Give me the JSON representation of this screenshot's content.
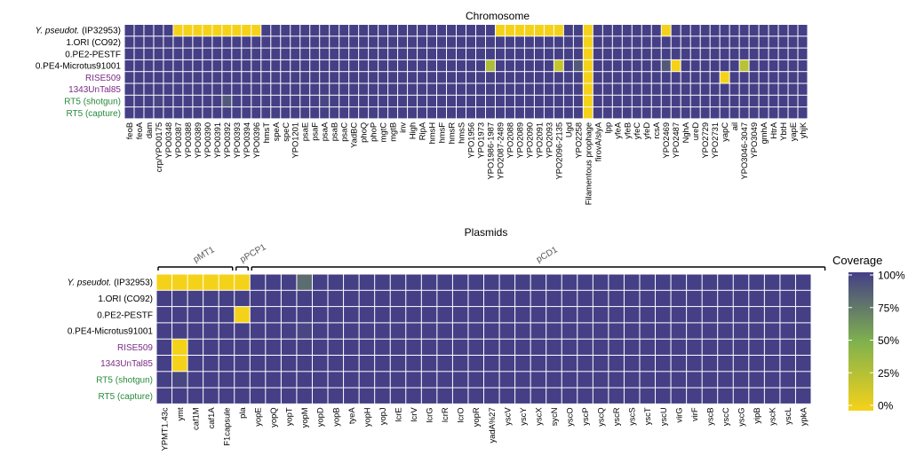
{
  "colors": {
    "high": "#453f86",
    "mid": "#7fb14e",
    "low": "#f5d21a",
    "grid": "#ffffff",
    "label_default": "#000000",
    "label_purple": "#7b2a86",
    "label_green": "#2a8a3d"
  },
  "legend": {
    "title": "Coverage",
    "ticks": [
      "100%",
      "75%",
      "50%",
      "25%",
      "0%"
    ]
  },
  "chart_data": [
    {
      "type": "heatmap",
      "title": "Chromosome",
      "rows": [
        {
          "label": "Y. pseudot. (IP32953)",
          "italic_prefix": "Y. pseudot.",
          "rest": " (IP32953)",
          "color": "label_default"
        },
        {
          "label": "1.ORI (CO92)",
          "color": "label_default"
        },
        {
          "label": "0.PE2-PESTF",
          "color": "label_default"
        },
        {
          "label": "0.PE4-Microtus91001",
          "color": "label_default"
        },
        {
          "label": "RISE509",
          "color": "label_purple"
        },
        {
          "label": "1343UnTal85",
          "color": "label_purple"
        },
        {
          "label": "RT5 (shotgun)",
          "color": "label_green"
        },
        {
          "label": "RT5 (capture)",
          "color": "label_green"
        }
      ],
      "columns": [
        "feoB",
        "feoA",
        "dam",
        "crp/YPO0175",
        "YPO0348",
        "YPO0387",
        "YPO0388",
        "YPO0389",
        "YPO0390",
        "YPO0391",
        "YPO0392",
        "YPO0393",
        "YPO0394",
        "YPO0396",
        "hmsT",
        "speA",
        "speC",
        "YPO1201",
        "psaE",
        "psaF",
        "psaA",
        "psaB",
        "psaC",
        "YadBC",
        "phoQ",
        "phoP",
        "mgtC",
        "mgtB",
        "inv",
        "High",
        "RipA",
        "hmsH",
        "hmsF",
        "hmsR",
        "hmsS",
        "YPO1956",
        "YPO1973",
        "YPO1986-1987",
        "YPO2087-2489",
        "YPO2088",
        "YPO2089",
        "YPO2090",
        "YPO2091",
        "YPO2093",
        "YPO2096-2135",
        "Ugd",
        "YPO2258",
        "Filamentous prophage",
        "firovA/slyA",
        "lpp",
        "yfeA",
        "yfeB",
        "yfeC",
        "yfeD",
        "rcsA",
        "YPO2469",
        "YPO2487",
        "NghA",
        "ureD",
        "YPO2729",
        "YPO2731",
        "yapC",
        "ail",
        "YPO3046-3047",
        "YPO3049",
        "gmhA",
        "HtrA",
        "YbtH",
        "yapE",
        "yhjK"
      ],
      "values": [
        [
          100,
          100,
          100,
          100,
          100,
          0,
          0,
          0,
          0,
          0,
          0,
          0,
          0,
          0,
          100,
          100,
          100,
          100,
          100,
          100,
          100,
          100,
          100,
          100,
          100,
          100,
          100,
          100,
          100,
          100,
          100,
          100,
          100,
          100,
          100,
          100,
          100,
          100,
          0,
          0,
          0,
          0,
          0,
          0,
          0,
          100,
          100,
          0,
          100,
          100,
          100,
          100,
          100,
          100,
          100,
          0,
          100,
          100,
          100,
          100,
          100,
          100,
          100,
          100,
          100,
          100,
          100,
          100,
          100,
          100
        ],
        [
          100,
          100,
          100,
          100,
          100,
          100,
          100,
          100,
          100,
          100,
          100,
          100,
          100,
          100,
          100,
          100,
          100,
          100,
          100,
          100,
          100,
          100,
          100,
          100,
          100,
          100,
          100,
          100,
          100,
          100,
          100,
          100,
          100,
          100,
          100,
          100,
          100,
          100,
          100,
          100,
          100,
          100,
          100,
          100,
          100,
          100,
          100,
          0,
          100,
          100,
          100,
          100,
          100,
          100,
          100,
          100,
          100,
          100,
          100,
          100,
          100,
          100,
          100,
          100,
          100,
          100,
          100,
          100,
          100,
          100
        ],
        [
          100,
          100,
          100,
          100,
          100,
          100,
          100,
          100,
          100,
          100,
          100,
          100,
          100,
          100,
          100,
          100,
          100,
          100,
          100,
          100,
          100,
          100,
          100,
          100,
          100,
          100,
          100,
          100,
          100,
          100,
          100,
          100,
          100,
          100,
          100,
          100,
          100,
          100,
          100,
          100,
          100,
          100,
          100,
          100,
          100,
          100,
          100,
          0,
          100,
          100,
          100,
          100,
          100,
          100,
          100,
          100,
          100,
          100,
          100,
          100,
          100,
          100,
          100,
          100,
          100,
          100,
          100,
          100,
          100,
          100
        ],
        [
          100,
          100,
          100,
          100,
          100,
          100,
          100,
          100,
          100,
          100,
          100,
          100,
          100,
          100,
          100,
          100,
          100,
          100,
          100,
          100,
          100,
          100,
          100,
          100,
          100,
          100,
          100,
          100,
          100,
          100,
          100,
          100,
          100,
          100,
          100,
          100,
          100,
          30,
          100,
          100,
          100,
          100,
          100,
          100,
          20,
          100,
          88,
          0,
          100,
          100,
          100,
          100,
          100,
          100,
          100,
          88,
          0,
          100,
          100,
          100,
          100,
          100,
          100,
          25,
          100,
          100,
          100,
          100,
          100,
          100
        ],
        [
          100,
          100,
          100,
          100,
          100,
          100,
          100,
          100,
          100,
          100,
          100,
          100,
          100,
          100,
          100,
          100,
          100,
          100,
          100,
          100,
          100,
          100,
          100,
          100,
          100,
          100,
          100,
          100,
          100,
          100,
          100,
          100,
          100,
          100,
          100,
          100,
          100,
          100,
          100,
          100,
          100,
          100,
          100,
          100,
          100,
          100,
          100,
          0,
          100,
          100,
          100,
          100,
          100,
          100,
          100,
          100,
          100,
          100,
          100,
          100,
          100,
          0,
          100,
          100,
          100,
          100,
          100,
          100,
          100,
          100
        ],
        [
          100,
          100,
          100,
          100,
          100,
          100,
          100,
          100,
          100,
          100,
          100,
          100,
          100,
          100,
          100,
          100,
          100,
          100,
          100,
          100,
          100,
          100,
          100,
          100,
          100,
          100,
          100,
          100,
          100,
          100,
          100,
          100,
          100,
          100,
          100,
          100,
          100,
          100,
          100,
          100,
          100,
          100,
          100,
          100,
          100,
          100,
          100,
          0,
          100,
          100,
          100,
          100,
          100,
          100,
          100,
          100,
          100,
          100,
          100,
          100,
          100,
          100,
          100,
          100,
          100,
          100,
          100,
          100,
          100,
          100
        ],
        [
          100,
          100,
          100,
          97,
          100,
          100,
          100,
          100,
          100,
          100,
          88,
          100,
          100,
          100,
          100,
          100,
          100,
          100,
          100,
          100,
          97,
          100,
          100,
          100,
          100,
          100,
          100,
          100,
          100,
          100,
          100,
          100,
          100,
          100,
          100,
          100,
          100,
          100,
          100,
          100,
          100,
          100,
          100,
          100,
          100,
          100,
          100,
          0,
          100,
          100,
          100,
          100,
          100,
          100,
          100,
          100,
          100,
          100,
          100,
          100,
          100,
          100,
          100,
          100,
          100,
          100,
          100,
          100,
          100,
          100
        ],
        [
          100,
          100,
          100,
          100,
          100,
          100,
          100,
          100,
          100,
          100,
          100,
          100,
          100,
          100,
          100,
          100,
          100,
          100,
          100,
          100,
          100,
          100,
          100,
          100,
          100,
          100,
          100,
          100,
          100,
          100,
          100,
          100,
          100,
          100,
          100,
          100,
          100,
          100,
          100,
          100,
          100,
          100,
          100,
          100,
          100,
          100,
          100,
          0,
          100,
          100,
          100,
          100,
          100,
          100,
          100,
          100,
          100,
          100,
          100,
          100,
          100,
          100,
          100,
          100,
          100,
          100,
          100,
          100,
          100,
          100
        ]
      ]
    },
    {
      "type": "heatmap",
      "title": "Plasmids",
      "groups": [
        {
          "label": "pMT1",
          "start": 0,
          "end": 4
        },
        {
          "label": "pPCP1",
          "start": 5,
          "end": 5
        },
        {
          "label": "pCD1",
          "start": 6,
          "end": 42
        }
      ],
      "rows": [
        {
          "label": "Y. pseudot. (IP32953)",
          "italic_prefix": "Y. pseudot.",
          "rest": " (IP32953)",
          "color": "label_default"
        },
        {
          "label": "1.ORI (CO92)",
          "color": "label_default"
        },
        {
          "label": "0.PE2-PESTF",
          "color": "label_default"
        },
        {
          "label": "0.PE4-Microtus91001",
          "color": "label_default"
        },
        {
          "label": "RISE509",
          "color": "label_purple"
        },
        {
          "label": "1343UnTal85",
          "color": "label_purple"
        },
        {
          "label": "RT5 (shotgun)",
          "color": "label_green"
        },
        {
          "label": "RT5 (capture)",
          "color": "label_green"
        }
      ],
      "columns": [
        "YPMT1.43c",
        "ymt",
        "caf1M",
        "caf1A",
        "F1capsule",
        "pla",
        "yopE",
        "yopQ",
        "yopT",
        "yopM",
        "yopD",
        "yopB",
        "tyeA",
        "yopH",
        "yopJ",
        "lcrE",
        "lcrV",
        "lcrG",
        "lcrR",
        "lcrO",
        "yopR",
        "yadA%27",
        "yscV",
        "yscY",
        "yscX",
        "sycN",
        "yscO",
        "yscP",
        "yscQ",
        "yscR",
        "yscS",
        "yscT",
        "yscU",
        "virG",
        "virF",
        "yscB",
        "yscC",
        "yscG",
        "yipB",
        "yscK",
        "yscL",
        "ypkA"
      ],
      "values": [
        [
          0,
          0,
          0,
          0,
          0,
          0,
          100,
          100,
          100,
          80,
          100,
          100,
          100,
          100,
          100,
          100,
          100,
          100,
          100,
          100,
          100,
          100,
          100,
          100,
          100,
          100,
          100,
          100,
          100,
          100,
          100,
          100,
          100,
          100,
          100,
          100,
          100,
          100,
          100,
          100,
          100,
          100
        ],
        [
          100,
          100,
          100,
          100,
          100,
          100,
          100,
          100,
          100,
          100,
          100,
          100,
          100,
          100,
          100,
          100,
          100,
          100,
          100,
          100,
          100,
          100,
          100,
          100,
          100,
          100,
          100,
          100,
          100,
          100,
          100,
          100,
          100,
          100,
          100,
          100,
          100,
          100,
          100,
          100,
          100,
          100
        ],
        [
          100,
          100,
          100,
          100,
          100,
          0,
          100,
          100,
          100,
          100,
          100,
          100,
          100,
          100,
          100,
          100,
          100,
          100,
          100,
          100,
          100,
          100,
          100,
          100,
          100,
          100,
          100,
          100,
          100,
          100,
          100,
          100,
          100,
          100,
          100,
          100,
          100,
          100,
          100,
          100,
          100,
          100
        ],
        [
          100,
          100,
          100,
          100,
          100,
          100,
          100,
          100,
          100,
          97,
          100,
          100,
          100,
          100,
          100,
          100,
          100,
          100,
          100,
          100,
          100,
          100,
          100,
          100,
          100,
          100,
          100,
          100,
          100,
          100,
          100,
          100,
          100,
          100,
          100,
          100,
          100,
          100,
          100,
          100,
          100,
          100
        ],
        [
          100,
          0,
          100,
          100,
          100,
          100,
          100,
          100,
          100,
          100,
          100,
          100,
          100,
          100,
          100,
          100,
          100,
          100,
          100,
          100,
          100,
          100,
          100,
          100,
          100,
          100,
          100,
          100,
          100,
          100,
          100,
          100,
          100,
          100,
          100,
          100,
          100,
          100,
          100,
          100,
          100,
          100
        ],
        [
          100,
          0,
          100,
          100,
          100,
          100,
          100,
          100,
          100,
          100,
          100,
          100,
          100,
          100,
          100,
          100,
          100,
          100,
          100,
          100,
          100,
          100,
          100,
          100,
          100,
          100,
          100,
          100,
          100,
          100,
          100,
          100,
          100,
          100,
          100,
          100,
          100,
          100,
          100,
          100,
          100,
          100
        ],
        [
          100,
          97,
          100,
          100,
          100,
          100,
          100,
          100,
          100,
          100,
          100,
          100,
          100,
          100,
          100,
          100,
          100,
          100,
          100,
          100,
          100,
          100,
          100,
          100,
          100,
          100,
          100,
          100,
          100,
          100,
          100,
          100,
          100,
          100,
          100,
          100,
          100,
          100,
          100,
          100,
          100,
          100
        ],
        [
          100,
          100,
          100,
          100,
          100,
          100,
          100,
          100,
          100,
          100,
          100,
          100,
          100,
          100,
          100,
          100,
          100,
          100,
          100,
          100,
          100,
          100,
          100,
          100,
          100,
          100,
          100,
          100,
          100,
          100,
          100,
          100,
          100,
          100,
          100,
          100,
          100,
          100,
          100,
          100,
          100,
          100
        ]
      ]
    }
  ]
}
